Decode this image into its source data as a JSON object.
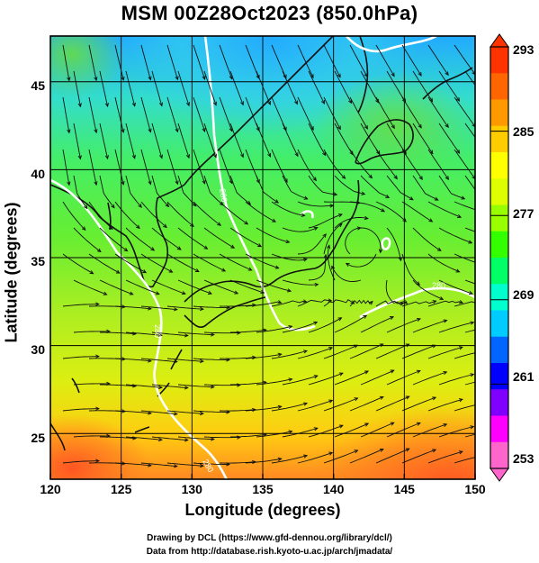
{
  "title": "MSM 00Z28Oct2023 (850.0hPa)",
  "x_axis": {
    "label": "Longitude (degrees)",
    "ticks": [
      "120",
      "125",
      "130",
      "135",
      "140",
      "145",
      "150"
    ]
  },
  "y_axis": {
    "label": "Latitude  (degrees)",
    "ticks": [
      "25",
      "30",
      "35",
      "40",
      "45"
    ]
  },
  "colorbar": {
    "ticks": [
      "293",
      "285",
      "277",
      "269",
      "261",
      "253"
    ]
  },
  "contour_labels": [
    "280",
    "280",
    "280",
    "280"
  ],
  "credits": {
    "line1": "Drawing by DCL (https://www.gfd-dennou.org/library/dcl/)",
    "line2": "Data from http://database.rish.kyoto-u.ac.jp/arch/jmadata/"
  },
  "chart_data": {
    "type": "map",
    "title": "MSM 00Z28Oct2023 (850.0hPa)",
    "xlabel": "Longitude (degrees)",
    "ylabel": "Latitude  (degrees)",
    "xlim": [
      120,
      150
    ],
    "ylim": [
      22.4,
      47.6
    ],
    "xticks": [
      120,
      125,
      130,
      135,
      140,
      145,
      150
    ],
    "yticks": [
      25,
      30,
      35,
      40,
      45
    ],
    "grid": true,
    "colorbar": {
      "min": 253,
      "max": 293,
      "ticks": [
        293,
        285,
        277,
        269,
        261,
        253
      ],
      "colors": [
        "#ff66cc",
        "#ff00ff",
        "#8000ff",
        "#0000ff",
        "#0066ff",
        "#00ccff",
        "#00ffcc",
        "#00ff66",
        "#33ff00",
        "#99ff00",
        "#ddff00",
        "#ffff00",
        "#ffcc00",
        "#ff9900",
        "#ff6600",
        "#ff3300"
      ]
    },
    "contour_value": 280,
    "field": "temperature with wind streamlines"
  }
}
